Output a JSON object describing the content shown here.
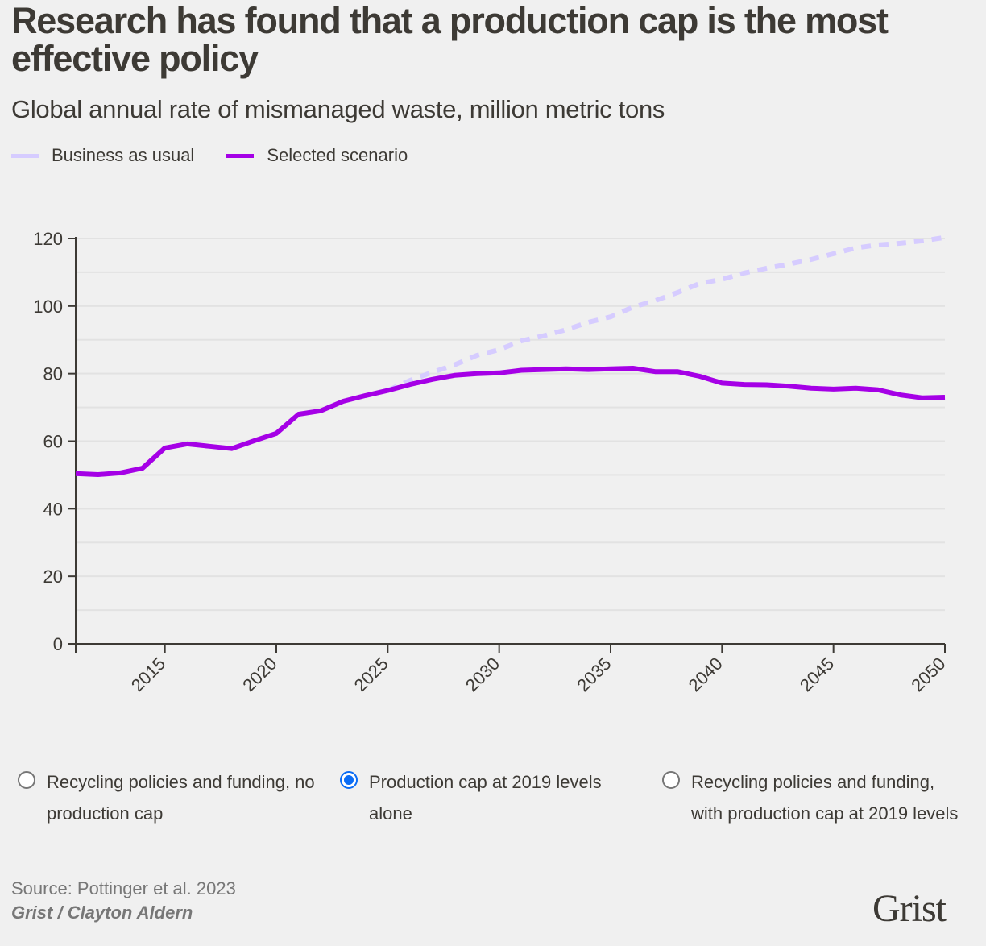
{
  "header": {
    "title": "Research has found that a production cap is the most effective policy",
    "subtitle": "Global annual rate of mismanaged waste, million metric tons"
  },
  "legend": [
    {
      "label": "Business as usual",
      "color": "#d6ccff"
    },
    {
      "label": "Selected scenario",
      "color": "#a500e6"
    }
  ],
  "chart_data": {
    "type": "line",
    "title": "Research has found that a production cap is the most effective policy",
    "subtitle": "Global annual rate of mismanaged waste, million metric tons",
    "xlabel": "",
    "ylabel": "",
    "xlim": [
      2011,
      2050
    ],
    "ylim": [
      0,
      120
    ],
    "x_ticks": [
      "2015",
      "2020",
      "2025",
      "2030",
      "2035",
      "2040",
      "2045",
      "2050"
    ],
    "y_ticks": [
      "0",
      "20",
      "40",
      "60",
      "80",
      "100",
      "120"
    ],
    "grid": "horizontal, every 10",
    "legend_position": "top-left",
    "series": [
      {
        "name": "Business as usual",
        "style": "dashed",
        "color": "#d6ccff",
        "x": [
          2025,
          2026,
          2027,
          2028,
          2029,
          2030,
          2031,
          2032,
          2033,
          2034,
          2035,
          2036,
          2037,
          2038,
          2039,
          2040,
          2041,
          2042,
          2043,
          2044,
          2045,
          2046,
          2047,
          2048,
          2049,
          2050
        ],
        "values": [
          75,
          78,
          80.4,
          82.6,
          85.4,
          87.1,
          89.7,
          91.2,
          93,
          95.2,
          96.8,
          99.7,
          101.6,
          104,
          106.7,
          107.9,
          109.8,
          111.2,
          112.4,
          113.8,
          115.5,
          117.2,
          118.1,
          118.6,
          119.3,
          120.3
        ]
      },
      {
        "name": "Selected scenario",
        "style": "solid",
        "color": "#a500e6",
        "x": [
          2011,
          2012,
          2013,
          2014,
          2015,
          2016,
          2017,
          2018,
          2019,
          2020,
          2021,
          2022,
          2023,
          2024,
          2025,
          2026,
          2027,
          2028,
          2029,
          2030,
          2031,
          2032,
          2033,
          2034,
          2035,
          2036,
          2037,
          2038,
          2039,
          2040,
          2041,
          2042,
          2043,
          2044,
          2045,
          2046,
          2047,
          2048,
          2049,
          2050
        ],
        "values": [
          50.4,
          50.1,
          50.6,
          52,
          58,
          59.2,
          58.5,
          57.8,
          60.1,
          62.3,
          68,
          69,
          71.8,
          73.5,
          75,
          76.8,
          78.3,
          79.5,
          80,
          80.2,
          81,
          81.2,
          81.4,
          81.2,
          81.4,
          81.6,
          80.6,
          80.6,
          79.2,
          77.2,
          76.8,
          76.7,
          76.3,
          75.7,
          75.4,
          75.7,
          75.2,
          73.7,
          72.8,
          73
        ]
      }
    ]
  },
  "scenarios": [
    {
      "label": "Recycling policies and funding, no production cap",
      "selected": false
    },
    {
      "label": "Production cap at 2019 levels alone",
      "selected": true
    },
    {
      "label": "Recycling policies and funding, with production cap at 2019 levels",
      "selected": false
    }
  ],
  "footer": {
    "source": "Source: Pottinger et al. 2023",
    "credit": "Grist / Clayton Aldern",
    "logo": "Grist"
  }
}
